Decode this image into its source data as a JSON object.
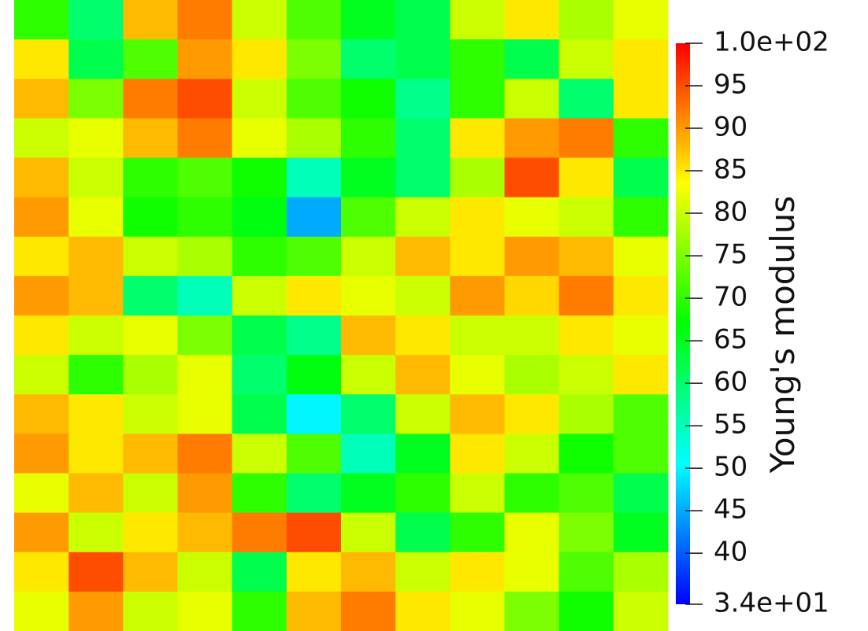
{
  "chart_data": {
    "type": "heatmap",
    "values": [
      [
        70,
        60,
        88,
        92,
        80,
        72,
        65,
        62,
        80,
        85,
        78,
        82
      ],
      [
        85,
        62,
        72,
        90,
        85,
        75,
        60,
        62,
        70,
        62,
        80,
        85
      ],
      [
        88,
        75,
        92,
        95,
        80,
        72,
        68,
        58,
        70,
        80,
        60,
        85
      ],
      [
        80,
        82,
        88,
        92,
        82,
        78,
        70,
        60,
        85,
        90,
        92,
        70
      ],
      [
        88,
        80,
        70,
        72,
        68,
        55,
        65,
        60,
        78,
        95,
        85,
        62
      ],
      [
        90,
        82,
        68,
        70,
        66,
        45,
        72,
        80,
        85,
        82,
        80,
        70
      ],
      [
        85,
        88,
        80,
        78,
        70,
        72,
        80,
        88,
        85,
        90,
        88,
        82
      ],
      [
        90,
        88,
        60,
        55,
        80,
        85,
        82,
        80,
        90,
        86,
        92,
        85
      ],
      [
        85,
        80,
        82,
        75,
        62,
        58,
        88,
        85,
        80,
        80,
        85,
        82
      ],
      [
        80,
        70,
        78,
        82,
        60,
        66,
        80,
        88,
        82,
        78,
        80,
        85
      ],
      [
        88,
        85,
        80,
        82,
        62,
        50,
        60,
        80,
        88,
        85,
        78,
        72
      ],
      [
        90,
        85,
        88,
        92,
        80,
        72,
        55,
        65,
        85,
        80,
        68,
        72
      ],
      [
        82,
        88,
        80,
        90,
        70,
        60,
        65,
        70,
        80,
        70,
        72,
        62
      ],
      [
        90,
        80,
        85,
        88,
        92,
        95,
        80,
        62,
        70,
        82,
        75,
        65
      ],
      [
        85,
        95,
        88,
        80,
        62,
        85,
        88,
        80,
        85,
        82,
        72,
        78
      ],
      [
        82,
        90,
        80,
        82,
        70,
        88,
        92,
        85,
        82,
        75,
        68,
        80
      ]
    ],
    "colors": [
      "#0000ff",
      "#00ffff",
      "#00ff00",
      "#ffff00",
      "#ff0000"
    ],
    "clim": [
      34,
      100
    ],
    "cticks": [
      {
        "value": 100,
        "label": "1.0e+02"
      },
      95,
      90,
      85,
      80,
      75,
      70,
      65,
      60,
      55,
      50,
      45,
      40,
      {
        "value": 34,
        "label": "3.4e+01"
      }
    ],
    "colorbar_label": "Young's modulus"
  }
}
